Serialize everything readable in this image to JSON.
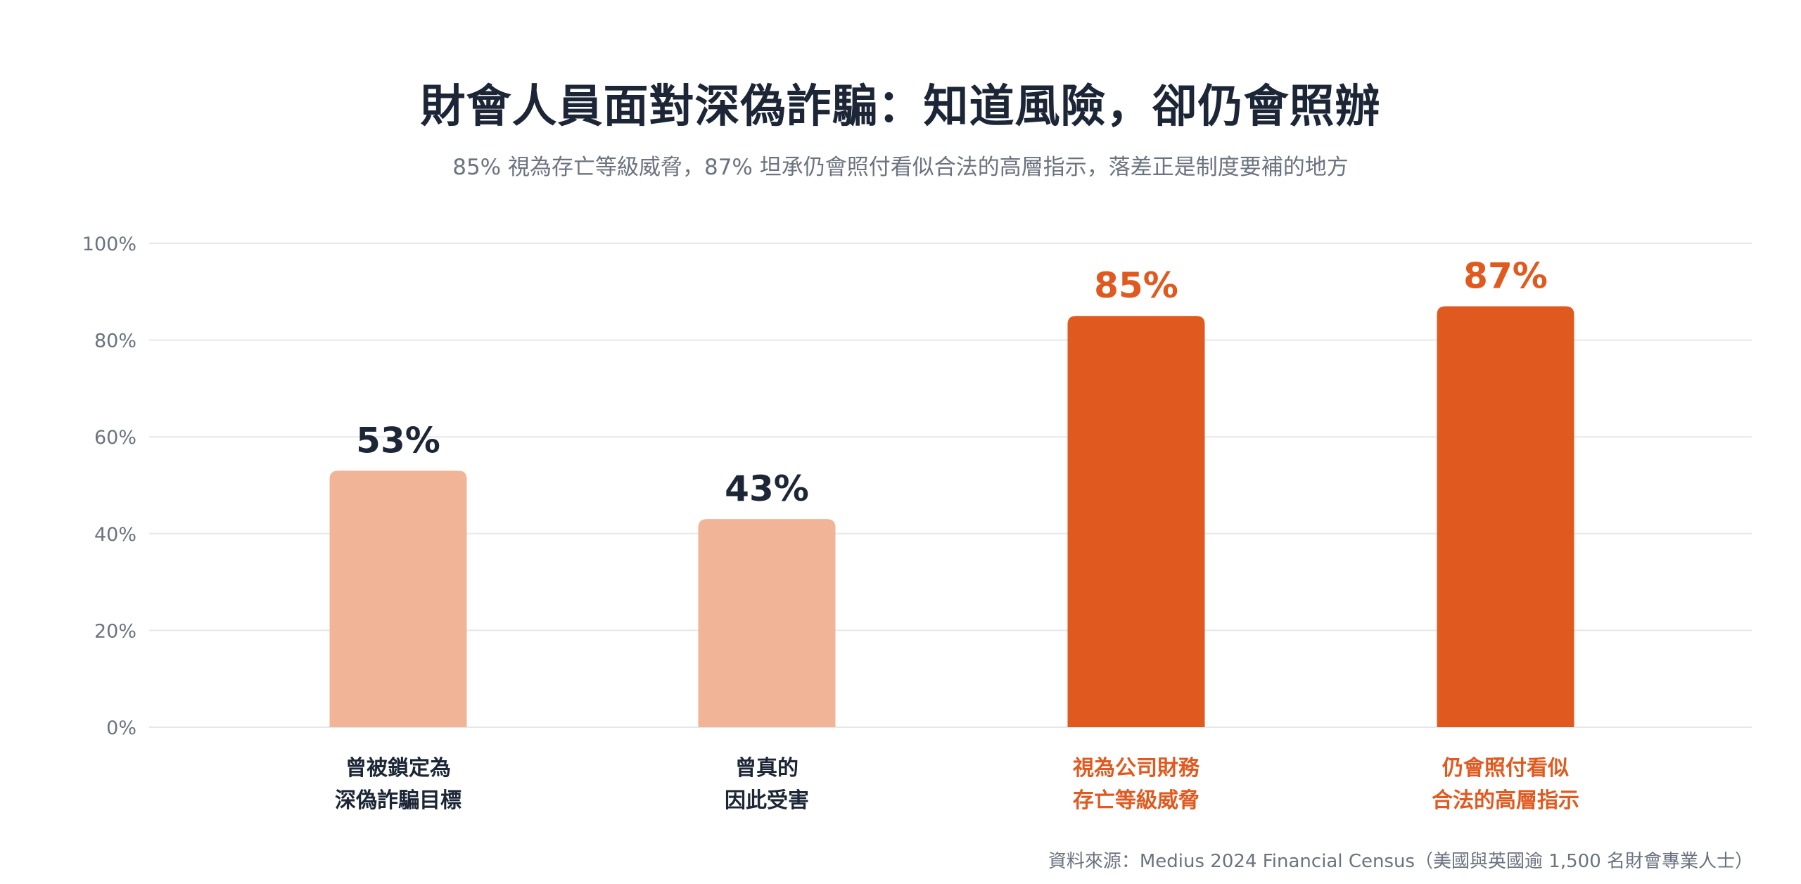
{
  "title": "財會人員面對深偽詐騙：知道風險，卻仍會照辦",
  "subtitle": "85% 視為存亡等級威脅，87% 坦承仍會照付看似合法的高層指示，落差正是制度要補的地方",
  "source": "資料來源：Medius 2024 Financial Census（美國與英國逾 1,500 名財會專業人士）",
  "colors": {
    "light_bar": "#f2b496",
    "dark_bar": "#e05a20",
    "dark_label": "#1c2636",
    "accent_label": "#e05a20",
    "grid": "#e5e7eb",
    "tick": "#6b7280"
  },
  "chart_data": {
    "type": "bar",
    "title": "財會人員面對深偽詐騙：知道風險，卻仍會照辦",
    "subtitle": "85% 視為存亡等級威脅，87% 坦承仍會照付看似合法的高層指示，落差正是制度要補的地方",
    "categories": [
      [
        "曾被鎖定為",
        "深偽詐騙目標"
      ],
      [
        "曾真的",
        "因此受害"
      ],
      [
        "視為公司財務",
        "存亡等級威脅"
      ],
      [
        "仍會照付看似",
        "合法的高層指示"
      ]
    ],
    "values": [
      53,
      43,
      85,
      87
    ],
    "value_labels": [
      "53%",
      "43%",
      "85%",
      "87%"
    ],
    "highlight": [
      false,
      false,
      true,
      true
    ],
    "ylim": [
      0,
      100
    ],
    "yticks": [
      0,
      20,
      40,
      60,
      80,
      100
    ],
    "ytick_labels": [
      "0%",
      "20%",
      "40%",
      "60%",
      "80%",
      "100%"
    ],
    "grid": true,
    "xlabel": "",
    "ylabel": ""
  }
}
